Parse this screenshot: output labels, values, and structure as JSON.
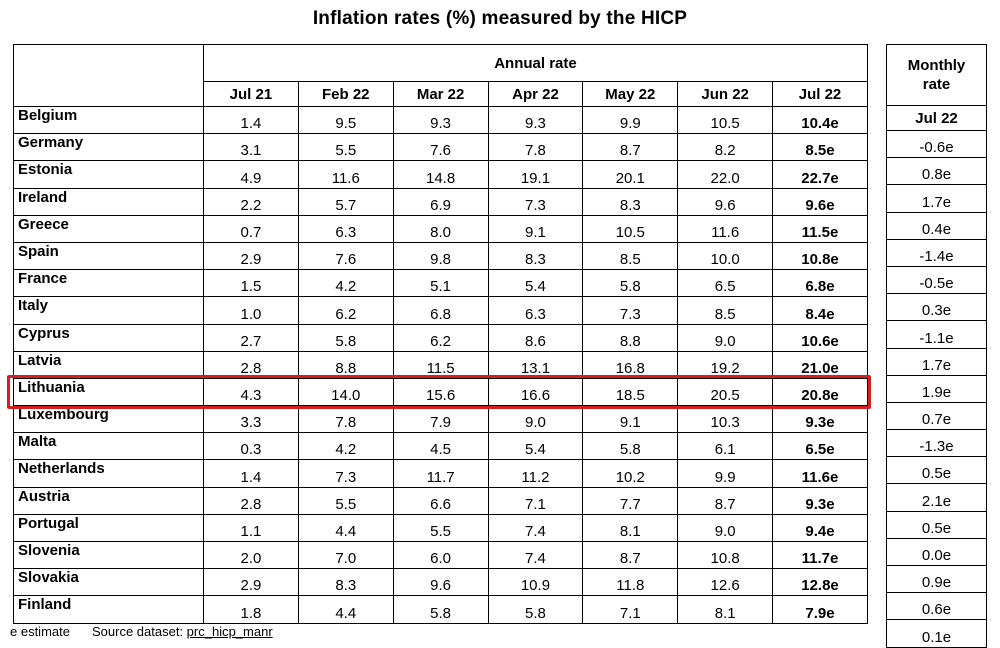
{
  "title": "Inflation rates (%) measured by the HICP",
  "annual_header": "Annual rate",
  "monthly_header_line1": "Monthly",
  "monthly_header_line2": "rate",
  "columns": [
    "Jul 21",
    "Feb 22",
    "Mar 22",
    "Apr 22",
    "May 22",
    "Jun 22",
    "Jul 22"
  ],
  "monthly_column": "Jul 22",
  "rows": [
    {
      "country": "Belgium",
      "values": [
        "1.4",
        "9.5",
        "9.3",
        "9.3",
        "9.9",
        "10.5",
        "10.4e"
      ],
      "monthly": "-0.6e"
    },
    {
      "country": "Germany",
      "values": [
        "3.1",
        "5.5",
        "7.6",
        "7.8",
        "8.7",
        "8.2",
        "8.5e"
      ],
      "monthly": "0.8e"
    },
    {
      "country": "Estonia",
      "values": [
        "4.9",
        "11.6",
        "14.8",
        "19.1",
        "20.1",
        "22.0",
        "22.7e"
      ],
      "monthly": "1.7e"
    },
    {
      "country": "Ireland",
      "values": [
        "2.2",
        "5.7",
        "6.9",
        "7.3",
        "8.3",
        "9.6",
        "9.6e"
      ],
      "monthly": "0.4e"
    },
    {
      "country": "Greece",
      "values": [
        "0.7",
        "6.3",
        "8.0",
        "9.1",
        "10.5",
        "11.6",
        "11.5e"
      ],
      "monthly": "-1.4e"
    },
    {
      "country": "Spain",
      "values": [
        "2.9",
        "7.6",
        "9.8",
        "8.3",
        "8.5",
        "10.0",
        "10.8e"
      ],
      "monthly": "-0.5e"
    },
    {
      "country": "France",
      "values": [
        "1.5",
        "4.2",
        "5.1",
        "5.4",
        "5.8",
        "6.5",
        "6.8e"
      ],
      "monthly": "0.3e"
    },
    {
      "country": "Italy",
      "values": [
        "1.0",
        "6.2",
        "6.8",
        "6.3",
        "7.3",
        "8.5",
        "8.4e"
      ],
      "monthly": "-1.1e"
    },
    {
      "country": "Cyprus",
      "values": [
        "2.7",
        "5.8",
        "6.2",
        "8.6",
        "8.8",
        "9.0",
        "10.6e"
      ],
      "monthly": "1.7e"
    },
    {
      "country": "Latvia",
      "values": [
        "2.8",
        "8.8",
        "11.5",
        "13.1",
        "16.8",
        "19.2",
        "21.0e"
      ],
      "monthly": "1.9e"
    },
    {
      "country": "Lithuania",
      "values": [
        "4.3",
        "14.0",
        "15.6",
        "16.6",
        "18.5",
        "20.5",
        "20.8e"
      ],
      "monthly": "0.7e"
    },
    {
      "country": "Luxembourg",
      "values": [
        "3.3",
        "7.8",
        "7.9",
        "9.0",
        "9.1",
        "10.3",
        "9.3e"
      ],
      "monthly": "-1.3e"
    },
    {
      "country": "Malta",
      "values": [
        "0.3",
        "4.2",
        "4.5",
        "5.4",
        "5.8",
        "6.1",
        "6.5e"
      ],
      "monthly": "0.5e"
    },
    {
      "country": "Netherlands",
      "values": [
        "1.4",
        "7.3",
        "11.7",
        "11.2",
        "10.2",
        "9.9",
        "11.6e"
      ],
      "monthly": "2.1e"
    },
    {
      "country": "Austria",
      "values": [
        "2.8",
        "5.5",
        "6.6",
        "7.1",
        "7.7",
        "8.7",
        "9.3e"
      ],
      "monthly": "0.5e"
    },
    {
      "country": "Portugal",
      "values": [
        "1.1",
        "4.4",
        "5.5",
        "7.4",
        "8.1",
        "9.0",
        "9.4e"
      ],
      "monthly": "0.0e"
    },
    {
      "country": "Slovenia",
      "values": [
        "2.0",
        "7.0",
        "6.0",
        "7.4",
        "8.7",
        "10.8",
        "11.7e"
      ],
      "monthly": "0.9e"
    },
    {
      "country": "Slovakia",
      "values": [
        "2.9",
        "8.3",
        "9.6",
        "10.9",
        "11.8",
        "12.6",
        "12.8e"
      ],
      "monthly": "0.6e"
    },
    {
      "country": "Finland",
      "values": [
        "1.8",
        "4.4",
        "5.8",
        "5.8",
        "7.1",
        "8.1",
        "7.9e"
      ],
      "monthly": "0.1e"
    }
  ],
  "highlighted_country": "Lithuania",
  "highlight_color": "#d32020",
  "footer": {
    "note": "e estimate",
    "source_label": "Source dataset:",
    "source_link": "prc_hicp_manr"
  }
}
